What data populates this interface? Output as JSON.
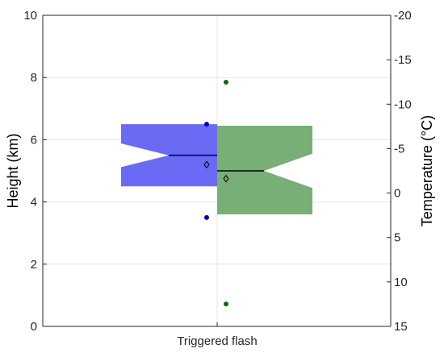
{
  "chart_data": {
    "type": "box",
    "categories": [
      "Triggered flash"
    ],
    "ylabel_left": "Height (km)",
    "ylabel_right": "Temperature (°C)",
    "ylim_left": [
      0,
      10
    ],
    "ylim_right": [
      15,
      -20
    ],
    "yticks_left": [
      "0",
      "2",
      "4",
      "6",
      "8",
      "10"
    ],
    "yticks_right": [
      "15",
      "10",
      "5",
      "0",
      "-5",
      "-10",
      "-15",
      "-20"
    ],
    "grid": true,
    "series": [
      {
        "color": "#6A6AF5",
        "median_color": "#00007A",
        "outlier_color": "#0000CC",
        "q1": 4.5,
        "q3": 6.5,
        "median": 5.5,
        "notch_low": 5.12,
        "notch_high": 5.88,
        "mean": 5.2,
        "outliers": [
          6.5,
          3.5
        ]
      },
      {
        "color": "#77AF77",
        "median_color": "#000000",
        "outlier_color": "#0A6A0A",
        "q1": 3.6,
        "q3": 6.45,
        "median": 5.0,
        "notch_low": 4.45,
        "notch_high": 5.55,
        "mean": 4.75,
        "outliers": [
          7.85,
          0.72
        ]
      }
    ]
  }
}
